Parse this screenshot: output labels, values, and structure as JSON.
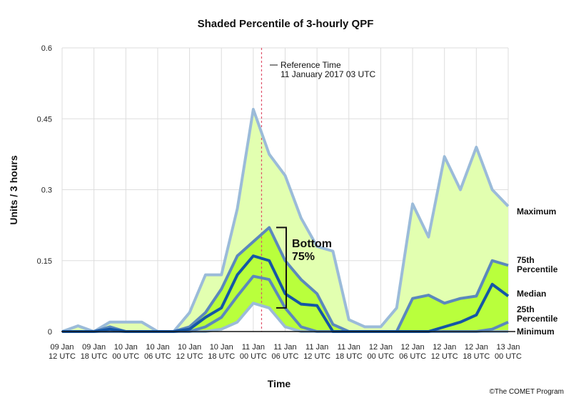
{
  "chart_data": {
    "type": "area",
    "title": "Shaded Percentile of 3-hourly QPF",
    "xlabel": "Time",
    "ylabel": "Units / 3 hours",
    "ylim": [
      0,
      0.6
    ],
    "yticks": [
      "0",
      "0.15",
      "0.3",
      "0.45",
      "0.6"
    ],
    "x_tick_labels": [
      [
        "09 Jan",
        "12 UTC"
      ],
      [
        "09 Jan",
        "18 UTC"
      ],
      [
        "10 Jan",
        "00 UTC"
      ],
      [
        "10 Jan",
        "06 UTC"
      ],
      [
        "10 Jan",
        "12 UTC"
      ],
      [
        "10 Jan",
        "18 UTC"
      ],
      [
        "11 Jan",
        "00 UTC"
      ],
      [
        "11 Jan",
        "06 UTC"
      ],
      [
        "11 Jan",
        "12 UTC"
      ],
      [
        "11 Jan",
        "18 UTC"
      ],
      [
        "12 Jan",
        "00 UTC"
      ],
      [
        "12 Jan",
        "06 UTC"
      ],
      [
        "12 Jan",
        "12 UTC"
      ],
      [
        "12 Jan",
        "18 UTC"
      ],
      [
        "13 Jan",
        "00 UTC"
      ]
    ],
    "x_step_hours": 3,
    "series": [
      {
        "name": "Maximum",
        "values": [
          0,
          0.012,
          0,
          0.02,
          0.02,
          0.02,
          0,
          0,
          0.04,
          0.12,
          0.12,
          0.26,
          0.47,
          0.375,
          0.33,
          0.24,
          0.18,
          0.17,
          0.025,
          0.01,
          0.01,
          0.05,
          0.27,
          0.2,
          0.37,
          0.3,
          0.39,
          0.3,
          0.265
        ]
      },
      {
        "name": "75th Percentile",
        "values": [
          0,
          0,
          0,
          0.01,
          0,
          0,
          0,
          0,
          0.01,
          0.04,
          0.09,
          0.16,
          0.19,
          0.22,
          0.15,
          0.11,
          0.08,
          0.015,
          0,
          0,
          0,
          0,
          0.07,
          0.077,
          0.06,
          0.07,
          0.075,
          0.15,
          0.14
        ]
      },
      {
        "name": "Median",
        "values": [
          0,
          0,
          0,
          0.005,
          0,
          0,
          0,
          0,
          0.005,
          0.03,
          0.05,
          0.12,
          0.16,
          0.15,
          0.08,
          0.058,
          0.055,
          0,
          0,
          0,
          0,
          0,
          0,
          0,
          0.01,
          0.02,
          0.035,
          0.1,
          0.075
        ]
      },
      {
        "name": "25th Percentile",
        "values": [
          0,
          0,
          0,
          0,
          0,
          0,
          0,
          0,
          0,
          0.01,
          0.03,
          0.075,
          0.117,
          0.11,
          0.05,
          0.01,
          0,
          0,
          0,
          0,
          0,
          0,
          0,
          0,
          0,
          0,
          0,
          0.005,
          0.02
        ]
      },
      {
        "name": "Minimum",
        "values": [
          0,
          0,
          0,
          0,
          0,
          0,
          0,
          0,
          0,
          0,
          0.005,
          0.02,
          0.06,
          0.05,
          0.01,
          0,
          0,
          0,
          0,
          0,
          0,
          0,
          0,
          0,
          0,
          0,
          0,
          0,
          0
        ]
      }
    ],
    "reference_time": {
      "label_line1": "Reference Time",
      "label_line2": "11 January 2017 03 UTC",
      "x_index": 13
    },
    "bracket": {
      "label_line1": "Bottom",
      "label_line2": "75%",
      "y_top": 0.22,
      "y_bottom": 0.05
    },
    "grid": true,
    "colors": {
      "max_min_line": "#9bbbd9",
      "pct_line": "#5b88bd",
      "median_line": "#1456a6",
      "outer_fill": "#e2ffb0",
      "inner_fill": "#b9ff3c",
      "ref_line": "#e0526b",
      "grid": "#dddddd"
    }
  },
  "series_labels": {
    "maximum": "Maximum",
    "p75_line1": "75th",
    "p75_line2": "Percentile",
    "median": "Median",
    "p25_line1": "25th",
    "p25_line2": "Percentile",
    "minimum": "Minimum"
  },
  "credit": "©The COMET Program"
}
